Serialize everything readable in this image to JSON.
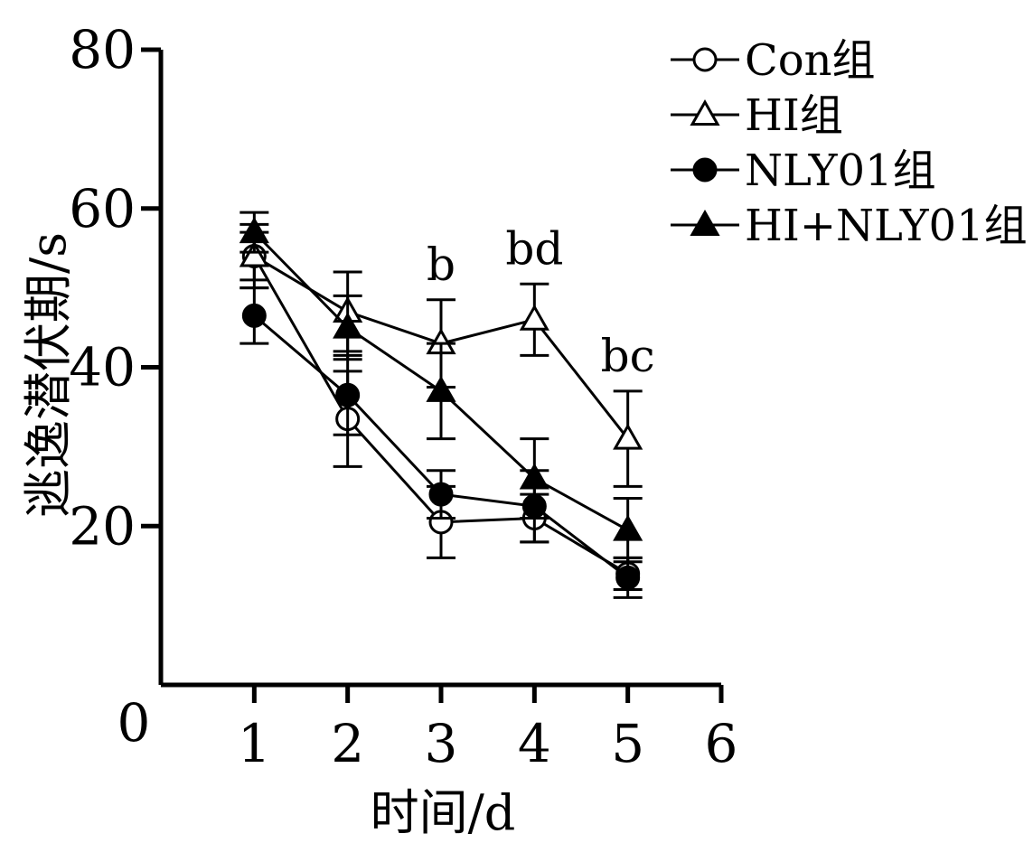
{
  "chart_data": {
    "type": "line",
    "xlabel": "时间/d",
    "ylabel": "逃逸潜伏期/s",
    "xlim": [
      0,
      6
    ],
    "ylim": [
      0,
      80
    ],
    "x_ticks": [
      "1",
      "2",
      "3",
      "4",
      "5",
      "6"
    ],
    "y_ticks": [
      "20",
      "40",
      "60",
      "80"
    ],
    "origin_label": "0",
    "legend_position": "top-right",
    "x": [
      1,
      2,
      3,
      4,
      5
    ],
    "series": [
      {
        "name": "Con组",
        "marker": "open-circle",
        "values": [
          54,
          33.5,
          20.5,
          21,
          14
        ],
        "errors": [
          3,
          6,
          4.5,
          3,
          2
        ]
      },
      {
        "name": "HI组",
        "marker": "open-triangle",
        "values": [
          54,
          47,
          43,
          46,
          31
        ],
        "errors": [
          4,
          5,
          5.5,
          4.5,
          6
        ]
      },
      {
        "name": "NLY01组",
        "marker": "filled-circle",
        "values": [
          46.5,
          36.5,
          24,
          22.5,
          13.5
        ],
        "errors": [
          3.5,
          5,
          3,
          4.5,
          2.5
        ]
      },
      {
        "name": "HI+NLY01组",
        "marker": "filled-triangle",
        "values": [
          57,
          45,
          37,
          26,
          19.5
        ],
        "errors": [
          2.5,
          4,
          6,
          5,
          4
        ]
      }
    ],
    "annotations": [
      {
        "x": 3,
        "y": 51,
        "text": "b"
      },
      {
        "x": 4,
        "y": 53,
        "text": "bd"
      },
      {
        "x": 5,
        "y": 39.5,
        "text": "bc"
      }
    ]
  }
}
